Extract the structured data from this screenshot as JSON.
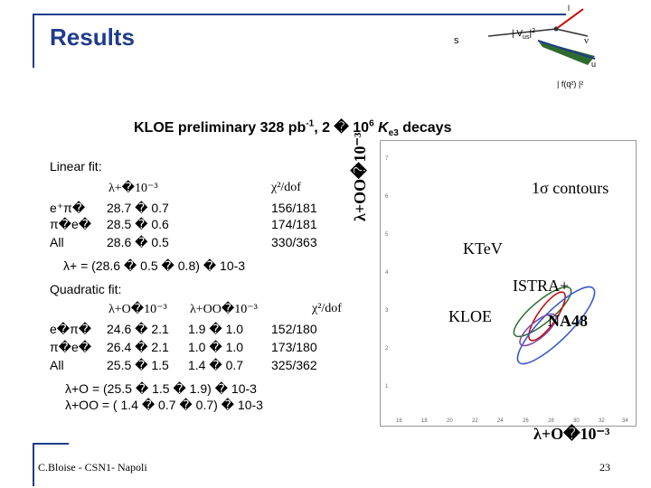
{
  "header": {
    "title": "Results"
  },
  "diagram": {
    "l_label": "l",
    "s_label": "s",
    "vus_label": "| V",
    "vus_sub": "us",
    "vus_sup": "|",
    "vus_sup2": "2",
    "nu_label": "ν",
    "u_label": "u",
    "ff_label": "| f(q²) |²"
  },
  "headline": {
    "text": "KLOE preliminary 328 pb",
    "sup": "-1",
    "rest": ", 2 � 10",
    "sup2": "6",
    "end": " K",
    "sub": "e3",
    "tail": " decays"
  },
  "linear": {
    "title": "Linear fit:",
    "col1_header": "λ+�10⁻³",
    "col2_header": "χ²/dof",
    "rows": [
      {
        "label": "e⁺π�",
        "v1": "28.7 � 0.7",
        "v2": "156/181"
      },
      {
        "label": "π�e�",
        "v1": "28.5 � 0.6",
        "v2": "174/181"
      },
      {
        "label": "All",
        "v1": "28.6 � 0.5",
        "v2": "330/363"
      }
    ],
    "result": "λ+ = (28.6 � 0.5 � 0.8) � 10-3"
  },
  "quadratic": {
    "title": "Quadratic fit:",
    "col1_header": "λ+O�10⁻³",
    "col2_header": "λ+OO�10⁻³",
    "col3_header": "χ²/dof",
    "rows": [
      {
        "label": "e�π�",
        "v1": "24.6 � 2.1",
        "v2": "1.9 � 1.0",
        "v3": "152/180"
      },
      {
        "label": "π�e�",
        "v1": "26.4 � 2.1",
        "v2": "1.0 � 1.0",
        "v3": "173/180"
      },
      {
        "label": "All",
        "v1": "25.5 � 1.5",
        "v2": "1.4 � 0.7",
        "v3": "325/362"
      }
    ],
    "result1": "λ+O  = (25.5 � 1.5 � 1.9) � 10-3",
    "result2": "λ+OO = ( 1.4 � 0.7 � 0.7) � 10-3"
  },
  "plot": {
    "ylabel": "λ+OO�10⁻³",
    "xlabel": "λ+O�10⁻³",
    "contours_label": "1σ contours",
    "labels": [
      "KTeV",
      "ISTRA+",
      "KLOE",
      "NA48"
    ],
    "y_ticks": [
      "1",
      "2",
      "3",
      "4",
      "5",
      "6",
      "7"
    ],
    "x_ticks": [
      "16",
      "18",
      "20",
      "22",
      "24",
      "26",
      "28",
      "30",
      "32",
      "34"
    ]
  },
  "footer": {
    "author": "C.Bloise - CSN1- Napoli",
    "page": "23"
  },
  "colors": {
    "accent": "#1f3c8c",
    "green": "#2e6b2e",
    "red": "#cc0000",
    "blue": "#3355cc",
    "purple": "#7744aa"
  }
}
